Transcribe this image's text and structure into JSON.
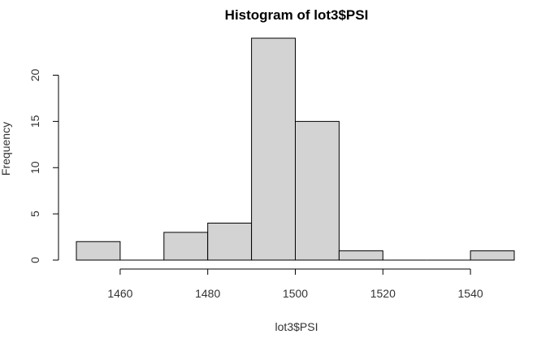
{
  "chart_data": {
    "type": "bar",
    "title": "Histogram of lot3$PSI",
    "xlabel": "lot3$PSI",
    "ylabel": "Frequency",
    "bins": [
      {
        "start": 1450,
        "end": 1460,
        "count": 2
      },
      {
        "start": 1460,
        "end": 1470,
        "count": 0
      },
      {
        "start": 1470,
        "end": 1480,
        "count": 3
      },
      {
        "start": 1480,
        "end": 1490,
        "count": 4
      },
      {
        "start": 1490,
        "end": 1500,
        "count": 24
      },
      {
        "start": 1500,
        "end": 1510,
        "count": 15
      },
      {
        "start": 1510,
        "end": 1520,
        "count": 1
      },
      {
        "start": 1520,
        "end": 1530,
        "count": 0
      },
      {
        "start": 1530,
        "end": 1540,
        "count": 0
      },
      {
        "start": 1540,
        "end": 1550,
        "count": 1
      }
    ],
    "xticks": [
      1460,
      1480,
      1500,
      1520,
      1540
    ],
    "yticks": [
      0,
      5,
      10,
      15,
      20
    ],
    "xlim": [
      1450,
      1550
    ],
    "ylim": [
      0,
      24
    ],
    "grid": false,
    "bar_fill": "#d3d3d3",
    "bar_stroke": "#000000"
  }
}
